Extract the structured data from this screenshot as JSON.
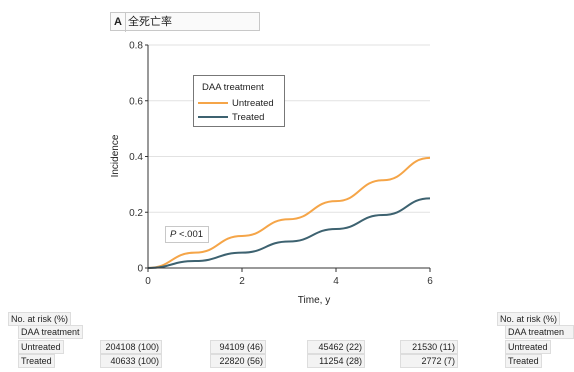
{
  "panel": {
    "letter": "A",
    "title": "全死亡率"
  },
  "chart_data": {
    "type": "line",
    "xlabel": "Time, y",
    "ylabel": "Incidence",
    "xlim": [
      0,
      6
    ],
    "ylim": [
      0,
      0.8
    ],
    "xticks": [
      "0",
      "2",
      "4",
      "6"
    ],
    "yticks": [
      "0",
      "0.2",
      "0.4",
      "0.6",
      "0.8"
    ],
    "grid": "horizontal",
    "legend": {
      "title": "DAA treatment",
      "placement": "top-left"
    },
    "series": [
      {
        "name": "Untreated",
        "color": "#f5a548",
        "x": [
          0,
          1,
          2,
          3,
          4,
          5,
          6
        ],
        "y": [
          0,
          0.055,
          0.115,
          0.175,
          0.24,
          0.315,
          0.395
        ]
      },
      {
        "name": "Treated",
        "color": "#3d6270",
        "x": [
          0,
          1,
          2,
          3,
          4,
          5,
          6
        ],
        "y": [
          0,
          0.025,
          0.055,
          0.095,
          0.14,
          0.19,
          0.25
        ]
      }
    ],
    "annotation": {
      "label": "P",
      "value": "<.001"
    }
  },
  "risk_table": {
    "left": {
      "header": "No. at risk (%)",
      "group": "DAA treatment",
      "rows": [
        {
          "label": "Untreated",
          "values": [
            "204108 (100)",
            "94109 (46)",
            "45462 (22)",
            "21530 (11)"
          ]
        },
        {
          "label": "Treated",
          "values": [
            "40633 (100)",
            "22820 (56)",
            "11254 (28)",
            "2772 (7)"
          ]
        }
      ]
    },
    "right": {
      "header": "No. at risk (%)",
      "group": "DAA treatmen",
      "labels": [
        "Untreated",
        "Treated"
      ]
    }
  }
}
